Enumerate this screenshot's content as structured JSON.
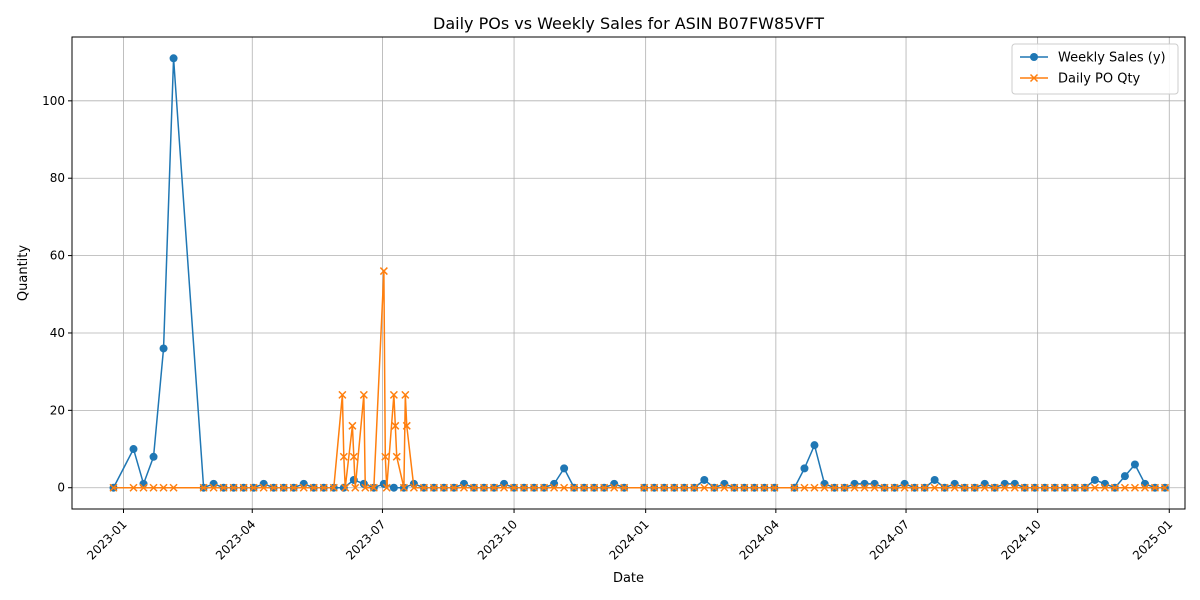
{
  "chart_data": {
    "type": "line",
    "title": "Daily POs vs Weekly Sales for ASIN B07FW85VFT",
    "xlabel": "Date",
    "ylabel": "Quantity",
    "xlim": [
      "2022-11-26",
      "2025-01-12"
    ],
    "ylim": [
      -5.5,
      116.5
    ],
    "x_ticks": [
      "2023-01",
      "2023-04",
      "2023-07",
      "2023-10",
      "2024-01",
      "2024-04",
      "2024-07",
      "2024-10",
      "2025-01"
    ],
    "y_ticks": [
      0,
      20,
      40,
      60,
      80,
      100
    ],
    "grid": true,
    "legend_position": "upper right",
    "series": [
      {
        "name": "Weekly Sales (y)",
        "color": "#1f77b4",
        "marker": "circle",
        "x": [
          "2022-12-25",
          "2023-01-08",
          "2023-01-15",
          "2023-01-22",
          "2023-01-29",
          "2023-02-05",
          "2023-02-26",
          "2023-03-05",
          "2023-03-12",
          "2023-03-19",
          "2023-03-26",
          "2023-04-02",
          "2023-04-09",
          "2023-04-16",
          "2023-04-23",
          "2023-04-30",
          "2023-05-07",
          "2023-05-14",
          "2023-05-21",
          "2023-05-28",
          "2023-06-04",
          "2023-06-11",
          "2023-06-18",
          "2023-06-25",
          "2023-07-02",
          "2023-07-09",
          "2023-07-16",
          "2023-07-23",
          "2023-07-30",
          "2023-08-06",
          "2023-08-13",
          "2023-08-20",
          "2023-08-27",
          "2023-09-03",
          "2023-09-10",
          "2023-09-17",
          "2023-09-24",
          "2023-10-01",
          "2023-10-08",
          "2023-10-15",
          "2023-10-22",
          "2023-10-29",
          "2023-11-05",
          "2023-11-12",
          "2023-11-19",
          "2023-11-26",
          "2023-12-03",
          "2023-12-10",
          "2023-12-17",
          "2023-12-31",
          "2024-01-07",
          "2024-01-14",
          "2024-01-21",
          "2024-01-28",
          "2024-02-04",
          "2024-02-11",
          "2024-02-18",
          "2024-02-25",
          "2024-03-03",
          "2024-03-10",
          "2024-03-17",
          "2024-03-24",
          "2024-03-31",
          "2024-04-14",
          "2024-04-21",
          "2024-04-28",
          "2024-05-05",
          "2024-05-12",
          "2024-05-19",
          "2024-05-26",
          "2024-06-02",
          "2024-06-09",
          "2024-06-16",
          "2024-06-23",
          "2024-06-30",
          "2024-07-07",
          "2024-07-14",
          "2024-07-21",
          "2024-07-28",
          "2024-08-04",
          "2024-08-11",
          "2024-08-18",
          "2024-08-25",
          "2024-09-01",
          "2024-09-08",
          "2024-09-15",
          "2024-09-22",
          "2024-09-29",
          "2024-10-06",
          "2024-10-13",
          "2024-10-20",
          "2024-10-27",
          "2024-11-03",
          "2024-11-10",
          "2024-11-17",
          "2024-11-24",
          "2024-12-01",
          "2024-12-08",
          "2024-12-15",
          "2024-12-22",
          "2024-12-29"
        ],
        "y": [
          0,
          10,
          1,
          8,
          36,
          111,
          0,
          1,
          0,
          0,
          0,
          0,
          1,
          0,
          0,
          0,
          1,
          0,
          0,
          0,
          0,
          2,
          1,
          0,
          1,
          0,
          0,
          1,
          0,
          0,
          0,
          0,
          1,
          0,
          0,
          0,
          1,
          0,
          0,
          0,
          0,
          1,
          5,
          0,
          0,
          0,
          0,
          1,
          0,
          0,
          0,
          0,
          0,
          0,
          0,
          2,
          0,
          1,
          0,
          0,
          0,
          0,
          0,
          0,
          5,
          11,
          1,
          0,
          0,
          1,
          1,
          1,
          0,
          0,
          1,
          0,
          0,
          2,
          0,
          1,
          0,
          0,
          1,
          0,
          1,
          1,
          0,
          0,
          0,
          0,
          0,
          0,
          0,
          2,
          1,
          0,
          3,
          6,
          1,
          0,
          0
        ]
      },
      {
        "name": "Daily PO Qty",
        "color": "#ff7f0e",
        "marker": "x",
        "x": [
          "2022-12-25",
          "2023-01-08",
          "2023-01-15",
          "2023-01-22",
          "2023-01-29",
          "2023-02-05",
          "2023-02-26",
          "2023-03-05",
          "2023-03-12",
          "2023-03-19",
          "2023-03-26",
          "2023-04-02",
          "2023-04-09",
          "2023-04-16",
          "2023-04-23",
          "2023-04-30",
          "2023-05-07",
          "2023-05-14",
          "2023-05-21",
          "2023-05-28",
          "2023-06-03",
          "2023-06-04",
          "2023-06-05",
          "2023-06-10",
          "2023-06-11",
          "2023-06-12",
          "2023-06-18",
          "2023-06-19",
          "2023-06-25",
          "2023-07-02",
          "2023-07-03",
          "2023-07-04",
          "2023-07-09",
          "2023-07-10",
          "2023-07-11",
          "2023-07-16",
          "2023-07-17",
          "2023-07-18",
          "2023-07-23",
          "2023-07-30",
          "2023-08-06",
          "2023-08-13",
          "2023-08-20",
          "2023-08-27",
          "2023-09-03",
          "2023-09-10",
          "2023-09-17",
          "2023-09-24",
          "2023-10-01",
          "2023-10-08",
          "2023-10-15",
          "2023-10-22",
          "2023-10-29",
          "2023-11-05",
          "2023-11-12",
          "2023-11-19",
          "2023-11-26",
          "2023-12-03",
          "2023-12-10",
          "2023-12-17",
          "2023-12-31",
          "2024-01-07",
          "2024-01-14",
          "2024-01-21",
          "2024-01-28",
          "2024-02-04",
          "2024-02-11",
          "2024-02-18",
          "2024-02-25",
          "2024-03-03",
          "2024-03-10",
          "2024-03-17",
          "2024-03-24",
          "2024-03-31",
          "2024-04-14",
          "2024-04-21",
          "2024-04-28",
          "2024-05-05",
          "2024-05-12",
          "2024-05-19",
          "2024-05-26",
          "2024-06-02",
          "2024-06-09",
          "2024-06-16",
          "2024-06-23",
          "2024-06-30",
          "2024-07-07",
          "2024-07-14",
          "2024-07-21",
          "2024-07-28",
          "2024-08-04",
          "2024-08-11",
          "2024-08-18",
          "2024-08-25",
          "2024-09-01",
          "2024-09-08",
          "2024-09-15",
          "2024-09-22",
          "2024-09-29",
          "2024-10-06",
          "2024-10-13",
          "2024-10-20",
          "2024-10-27",
          "2024-11-03",
          "2024-11-10",
          "2024-11-17",
          "2024-11-24",
          "2024-12-01",
          "2024-12-08",
          "2024-12-15",
          "2024-12-22",
          "2024-12-29"
        ],
        "y": [
          0,
          0,
          0,
          0,
          0,
          0,
          0,
          0,
          0,
          0,
          0,
          0,
          0,
          0,
          0,
          0,
          0,
          0,
          0,
          0,
          24,
          8,
          0,
          16,
          8,
          0,
          24,
          0,
          0,
          56,
          8,
          0,
          24,
          16,
          8,
          0,
          24,
          16,
          0,
          0,
          0,
          0,
          0,
          0,
          0,
          0,
          0,
          0,
          0,
          0,
          0,
          0,
          0,
          0,
          0,
          0,
          0,
          0,
          0,
          0,
          0,
          0,
          0,
          0,
          0,
          0,
          0,
          0,
          0,
          0,
          0,
          0,
          0,
          0,
          0,
          0,
          0,
          0,
          0,
          0,
          0,
          0,
          0,
          0,
          0,
          0,
          0,
          0,
          0,
          0,
          0,
          0,
          0,
          0,
          0,
          0,
          0,
          0,
          0,
          0,
          0,
          0,
          0,
          0,
          0,
          0,
          0,
          0,
          0,
          0,
          0,
          0
        ]
      }
    ]
  }
}
